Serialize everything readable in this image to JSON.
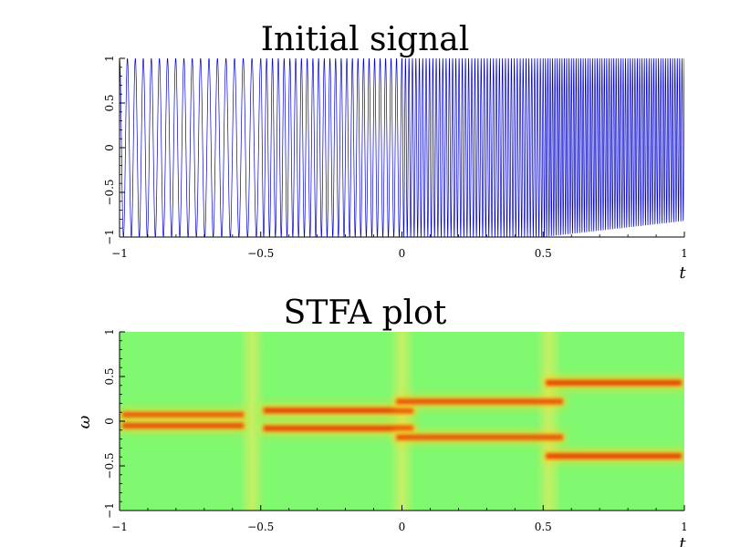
{
  "chart_data": [
    {
      "type": "line",
      "title": "Initial signal",
      "xlabel": "t",
      "ylabel": "",
      "xlim": [
        -1,
        1
      ],
      "ylim": [
        -1,
        1
      ],
      "xticks": [
        "−1",
        "−0.5",
        "0",
        "0.5",
        "1"
      ],
      "yticks": [
        "−1",
        "−0.5",
        "0",
        "0.5",
        "1"
      ],
      "grid": false,
      "line_color": "#0000cc",
      "series": [
        {
          "segments": [
            {
              "t": [
                -1,
                -0.5
              ],
              "frequencies": [
                36,
                32
              ],
              "amplitude": 1
            },
            {
              "t": [
                -0.5,
                0
              ],
              "frequencies": [
                48,
                52
              ],
              "amplitude": 1
            },
            {
              "t": [
                0,
                0.5
              ],
              "frequencies": [
                80,
                100
              ],
              "amplitude": 1
            },
            {
              "t": [
                0.5,
                1
              ],
              "frequencies": [
                120,
                120
              ],
              "amplitude": 1,
              "envelope_end": [
                1,
                -0.82
              ]
            }
          ]
        }
      ]
    },
    {
      "type": "heatmap",
      "title": "STFA plot",
      "xlabel": "t",
      "ylabel": "ω",
      "xlim": [
        -1,
        1
      ],
      "ylim": [
        -1,
        1
      ],
      "xticks": [
        "−1",
        "−0.5",
        "0",
        "0.5",
        "1"
      ],
      "yticks": [
        "−1",
        "−0.5",
        "0",
        "0.5",
        "1"
      ],
      "background_color": "#80f870",
      "colorscale": [
        "#80f870",
        "#ffd22a",
        "#d21e00"
      ],
      "ridges": [
        {
          "t": [
            -1,
            -0.55
          ],
          "omega": 0.07,
          "intensity": 0.75
        },
        {
          "t": [
            -1,
            -0.55
          ],
          "omega": -0.05,
          "intensity": 0.75
        },
        {
          "t": [
            -0.5,
            0.05
          ],
          "omega": 0.12,
          "intensity": 0.95
        },
        {
          "t": [
            -0.5,
            0.05
          ],
          "omega": -0.08,
          "intensity": 0.95
        },
        {
          "t": [
            -0.03,
            0.58
          ],
          "omega": 0.22,
          "intensity": 0.7
        },
        {
          "t": [
            -0.03,
            0.58
          ],
          "omega": -0.18,
          "intensity": 0.7
        },
        {
          "t": [
            0.5,
            1
          ],
          "omega": 0.43,
          "intensity": 1.0
        },
        {
          "t": [
            0.5,
            1
          ],
          "omega": -0.39,
          "intensity": 1.0
        }
      ],
      "transitions": [
        -0.53,
        0.0,
        0.52
      ]
    }
  ]
}
